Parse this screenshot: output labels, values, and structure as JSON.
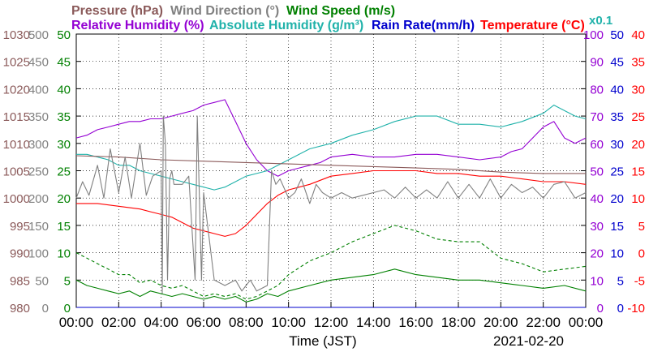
{
  "chart_data": {
    "type": "line",
    "header": {
      "row1": [
        {
          "text": "Pressure (hPa)",
          "color": "#8b5a5a"
        },
        {
          "text": "Wind Direction (°)",
          "color": "#808080"
        },
        {
          "text": "Wind Speed (m/s)",
          "color": "#008000"
        }
      ],
      "row2": [
        {
          "text": "Relative Humidity (%)",
          "color": "#9400d3"
        },
        {
          "text": "Absolute Humidity (g/m³)",
          "color": "#20b2aa"
        },
        {
          "text": "Rain Rate(mm/h)",
          "color": "#0000cd"
        },
        {
          "text": "Temperature (°C)",
          "color": "#ff0000"
        }
      ],
      "multiplier": {
        "text": "x0.1",
        "color": "#20b2aa"
      }
    },
    "xlabel": "Time (JST)",
    "date": "2021-02-20",
    "x_ticks": [
      "00:00",
      "02:00",
      "04:00",
      "06:00",
      "08:00",
      "10:00",
      "12:00",
      "14:00",
      "16:00",
      "18:00",
      "20:00",
      "22:00",
      "00:00"
    ],
    "xlim": [
      0,
      24
    ],
    "axes": {
      "pressure": {
        "color": "#8b5a5a",
        "ticks": [
          "1030",
          "1025",
          "1020",
          "1015",
          "1010",
          "1005",
          "1000",
          "995",
          "990",
          "985",
          "980"
        ]
      },
      "wind_direction": {
        "color": "#808080",
        "ticks": [
          "500",
          "450",
          "400",
          "350",
          "300",
          "250",
          "200",
          "150",
          "100",
          "50",
          "0"
        ]
      },
      "wind_speed": {
        "color": "#008000",
        "ticks": [
          "50",
          "45",
          "40",
          "35",
          "30",
          "25",
          "20",
          "15",
          "10",
          "5",
          "0"
        ]
      },
      "humidity": {
        "color": "#9400d3",
        "ticks": [
          "100",
          "90",
          "80",
          "70",
          "60",
          "50",
          "40",
          "30",
          "20",
          "10",
          "0"
        ]
      },
      "rain_rate": {
        "color": "#0000cd",
        "ticks": [
          "50",
          "45",
          "40",
          "35",
          "30",
          "25",
          "20",
          "15",
          "10",
          "5",
          "0"
        ]
      },
      "temperature": {
        "color": "#ff0000",
        "ticks": [
          "40",
          "35",
          "30",
          "25",
          "20",
          "15",
          "10",
          "5",
          "0",
          "-5",
          "-10"
        ]
      }
    },
    "grid": true,
    "series": [
      {
        "name": "Relative Humidity (%)",
        "color": "#9400d3",
        "axis": "humidity",
        "style": "solid",
        "x": [
          0,
          0.5,
          1,
          1.5,
          2,
          2.5,
          3,
          3.5,
          4,
          4.5,
          5,
          5.5,
          6,
          6.5,
          7,
          7.5,
          8,
          8.5,
          9,
          9.5,
          10,
          10.5,
          11,
          11.5,
          12,
          13,
          14,
          15,
          16,
          17,
          18,
          19,
          20,
          20.5,
          21,
          21.5,
          22,
          22.5,
          23,
          23.5,
          24
        ],
        "y": [
          62,
          63,
          65,
          66,
          67,
          68,
          68,
          69,
          69,
          70,
          71,
          72,
          74,
          75,
          76,
          68,
          60,
          54,
          50,
          48,
          50,
          51,
          52,
          53,
          55,
          56,
          55,
          55,
          56,
          56,
          55,
          54,
          55,
          57,
          58,
          62,
          66,
          68,
          62,
          60,
          62
        ]
      },
      {
        "name": "Absolute Humidity (g/m³)",
        "color": "#20b2aa",
        "axis": "humidity",
        "style": "solid",
        "x": [
          0,
          0.5,
          1,
          1.5,
          2,
          2.5,
          3,
          3.5,
          4,
          4.5,
          5,
          5.5,
          6,
          6.5,
          7,
          7.5,
          8,
          8.5,
          9,
          9.5,
          10,
          11,
          12,
          13,
          14,
          15,
          16,
          17,
          18,
          19,
          20,
          21,
          22,
          22.5,
          23,
          23.5,
          24
        ],
        "y": [
          56,
          56,
          55,
          54,
          52,
          52,
          50,
          49,
          48,
          47,
          46,
          45,
          44,
          43,
          44,
          46,
          48,
          49,
          50,
          52,
          54,
          58,
          60,
          63,
          65,
          68,
          70,
          70,
          67,
          67,
          66,
          68,
          71,
          74,
          72,
          70,
          69
        ]
      },
      {
        "name": "Pressure (hPa)",
        "color": "#8b5a5a",
        "axis": "humidity",
        "style": "solid",
        "x": [
          0,
          2,
          4,
          6,
          8,
          10,
          12,
          14,
          16,
          18,
          20,
          22,
          24
        ],
        "y": [
          55.5,
          55,
          54,
          53.5,
          53,
          52.5,
          52,
          51.5,
          51,
          50.5,
          49.5,
          49,
          49
        ]
      },
      {
        "name": "Temperature (°C)",
        "color": "#ff0000",
        "axis": "humidity",
        "style": "solid",
        "x": [
          0,
          1,
          2,
          3,
          3.5,
          4,
          4.5,
          5,
          5.5,
          6,
          6.5,
          7,
          7.5,
          8,
          8.5,
          9,
          9.5,
          10,
          10.5,
          11,
          12,
          13,
          14,
          15,
          16,
          17,
          18,
          19,
          20,
          21,
          22,
          23,
          24
        ],
        "y": [
          38,
          38,
          37,
          36,
          35,
          34,
          33,
          31,
          29,
          28,
          27,
          26,
          27,
          30,
          34,
          38,
          41,
          43,
          44,
          45,
          48,
          49,
          50,
          50,
          50,
          49,
          49,
          48,
          48,
          47,
          46,
          46,
          45
        ]
      },
      {
        "name": "Wind Direction (°)",
        "color": "#808080",
        "axis": "humidity",
        "style": "solid",
        "x": [
          0,
          0.3,
          0.6,
          1,
          1.3,
          1.6,
          2,
          2.3,
          2.6,
          3,
          3.3,
          3.6,
          4,
          4.05,
          4.1,
          4.2,
          4.3,
          4.4,
          4.5,
          4.6,
          5,
          5.3,
          5.6,
          5.7,
          5.8,
          5.9,
          6,
          6.5,
          7,
          7.5,
          7.8,
          8,
          8.2,
          8.5,
          9,
          9.2,
          9.4,
          9.6,
          10,
          10.3,
          10.6,
          11,
          11.3,
          11.6,
          12,
          12.5,
          13,
          13.5,
          14,
          14.5,
          15,
          15.5,
          16,
          16.5,
          17,
          17.5,
          18,
          18.5,
          19,
          19.5,
          20,
          20.5,
          21,
          21.5,
          22,
          22.5,
          23,
          23.5,
          24
        ],
        "y": [
          40,
          46,
          41,
          52,
          40,
          58,
          42,
          55,
          40,
          60,
          41,
          48,
          50,
          5,
          70,
          60,
          10,
          47,
          50,
          45,
          45,
          48,
          10,
          70,
          40,
          10,
          42,
          10,
          8,
          10,
          6,
          8,
          10,
          6,
          8,
          50,
          45,
          47,
          40,
          42,
          47,
          38,
          45,
          42,
          40,
          42,
          40,
          41,
          42,
          43,
          40,
          44,
          40,
          43,
          40,
          46,
          40,
          45,
          40,
          47,
          40,
          45,
          42,
          44,
          40,
          45,
          46,
          40,
          42
        ]
      },
      {
        "name": "Wind Speed (m/s)",
        "color": "#008000",
        "axis": "humidity",
        "style": "solid",
        "x": [
          0,
          0.5,
          1,
          1.5,
          2,
          2.5,
          3,
          3.5,
          4,
          4.5,
          5,
          5.5,
          6,
          6.5,
          7,
          7.5,
          8,
          8.5,
          9,
          9.5,
          10,
          11,
          12,
          13,
          14,
          15,
          16,
          17,
          18,
          19,
          20,
          21,
          22,
          23,
          24
        ],
        "y": [
          10,
          8,
          7,
          6,
          5,
          6,
          4,
          6,
          5,
          4,
          5,
          4,
          3,
          4,
          3,
          4,
          2,
          3,
          5,
          4,
          6,
          8,
          10,
          11,
          12,
          14,
          12,
          11,
          10,
          10,
          9,
          8,
          7,
          8,
          6
        ]
      },
      {
        "name": "Wind Speed gust (m/s)",
        "color": "#008000",
        "axis": "humidity",
        "style": "dashed",
        "x": [
          0,
          0.5,
          1,
          1.5,
          2,
          2.5,
          3,
          3.5,
          4,
          4.5,
          5,
          5.5,
          6,
          6.5,
          7,
          7.5,
          8,
          8.5,
          9,
          9.5,
          10,
          11,
          12,
          13,
          14,
          15,
          16,
          17,
          18,
          19,
          20,
          21,
          22,
          23,
          24
        ],
        "y": [
          20,
          18,
          16,
          14,
          12,
          12,
          9,
          10,
          8,
          7,
          8,
          6,
          4,
          5,
          4,
          5,
          3,
          4,
          6,
          8,
          12,
          17,
          20,
          24,
          27,
          30,
          28,
          25,
          24,
          24,
          18,
          16,
          13,
          14,
          15
        ]
      },
      {
        "name": "Rain Rate(mm/h)",
        "color": "#0000cd",
        "axis": "humidity",
        "style": "solid",
        "x": [
          0,
          24
        ],
        "y": [
          0,
          0
        ]
      }
    ]
  }
}
